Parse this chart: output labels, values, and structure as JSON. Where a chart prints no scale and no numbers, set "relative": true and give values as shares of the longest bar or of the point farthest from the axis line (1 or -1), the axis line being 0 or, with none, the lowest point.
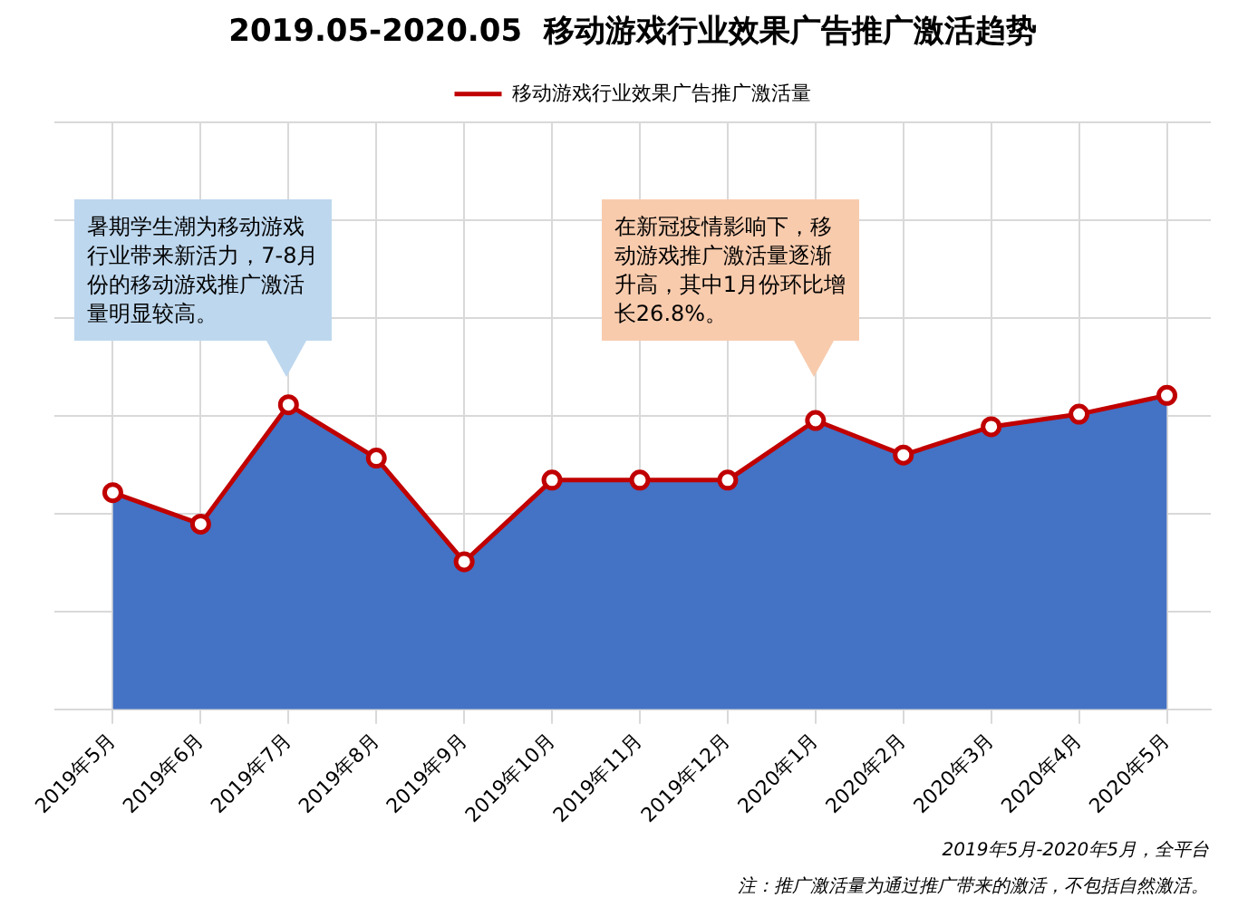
{
  "chart_data": {
    "type": "area",
    "title": "2019.05-2020.05  移动游戏行业效果广告推广激活趋势",
    "categories": [
      "2019年5月",
      "2019年6月",
      "2019年7月",
      "2019年8月",
      "2019年9月",
      "2019年10月",
      "2019年11月",
      "2019年12月",
      "2020年1月",
      "2020年2月",
      "2020年3月",
      "2020年4月",
      "2020年5月"
    ],
    "series": [
      {
        "color": "#4472c4",
        "values": [
          0.69,
          0.59,
          0.97,
          0.8,
          0.47,
          0.73,
          0.73,
          0.73,
          0.92,
          0.81,
          0.9,
          0.94,
          1
        ]
      },
      {
        "type": "line",
        "marker": "circle",
        "name": "移动游戏行业效果广告推广激活量",
        "color": "#c00000",
        "values": [
          0.69,
          0.59,
          0.97,
          0.8,
          0.47,
          0.73,
          0.73,
          0.73,
          0.92,
          0.81,
          0.9,
          0.94,
          1
        ]
      }
    ],
    "relative": true,
    "grid": true,
    "legend": "top",
    "tick_labels": "x",
    "annotations": [
      "暑期学生潮为移动游戏行业带来新活力，7-8月份的移动游戏推广激活量明显较高。",
      "在新冠疫情影响下，移动游戏推广激活量逐渐升高，其中1月份环比增长26.8%。",
      "2019年5月-2020年5月，全平台",
      "注：推广激活量为通过推广带来的激活，不包括自然激活。"
    ]
  }
}
